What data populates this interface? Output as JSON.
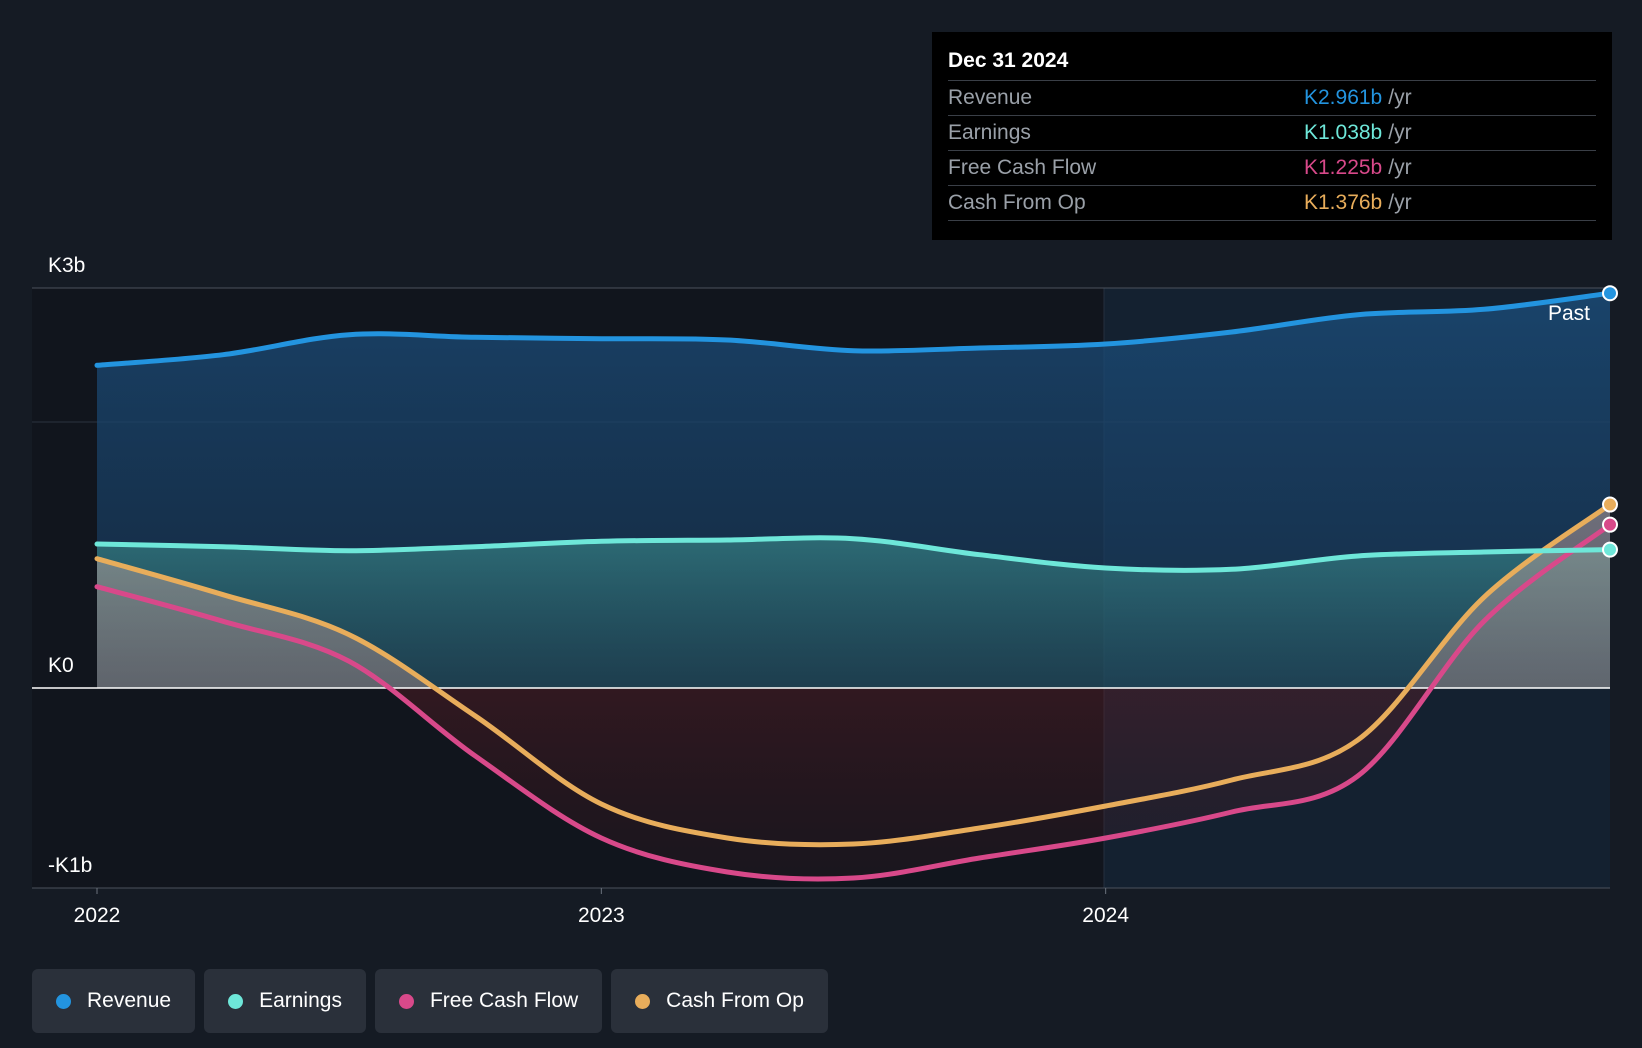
{
  "tooltip": {
    "date": "Dec 31 2024",
    "rows": [
      {
        "label": "Revenue",
        "value": "K2.961b",
        "unit": "/yr",
        "color": "#2394df"
      },
      {
        "label": "Earnings",
        "value": "K1.038b",
        "unit": "/yr",
        "color": "#6ee7d9"
      },
      {
        "label": "Free Cash Flow",
        "value": "K1.225b",
        "unit": "/yr",
        "color": "#d8498a"
      },
      {
        "label": "Cash From Op",
        "value": "K1.376b",
        "unit": "/yr",
        "color": "#e8ad5b"
      }
    ]
  },
  "legend": [
    {
      "label": "Revenue",
      "color": "#2394df"
    },
    {
      "label": "Earnings",
      "color": "#6ee7d9"
    },
    {
      "label": "Free Cash Flow",
      "color": "#d8498a"
    },
    {
      "label": "Cash From Op",
      "color": "#e8ad5b"
    }
  ],
  "chart_data": {
    "type": "area",
    "title": "",
    "xlabel": "",
    "ylabel": "",
    "x_ticks": [
      "2022",
      "2023",
      "2024"
    ],
    "y_tick_labels": [
      "K3b",
      "K0",
      "-K1b"
    ],
    "y_ticks": [
      3,
      0,
      -1
    ],
    "ylim": [
      -1,
      3
    ],
    "xlim": [
      2021.87,
      2025.0
    ],
    "past_label": "Past",
    "x": [
      2022.0,
      2022.25,
      2022.5,
      2022.75,
      2023.0,
      2023.25,
      2023.5,
      2023.75,
      2024.0,
      2024.25,
      2024.5,
      2024.75,
      2025.0
    ],
    "series": [
      {
        "name": "Revenue",
        "color": "#2394df",
        "values": [
          2.42,
          2.5,
          2.65,
          2.63,
          2.62,
          2.61,
          2.53,
          2.55,
          2.58,
          2.67,
          2.8,
          2.84,
          2.961
        ]
      },
      {
        "name": "Earnings",
        "color": "#6ee7d9",
        "values": [
          1.08,
          1.06,
          1.03,
          1.06,
          1.1,
          1.11,
          1.12,
          1.0,
          0.9,
          0.89,
          0.99,
          1.02,
          1.038
        ]
      },
      {
        "name": "Free Cash Flow",
        "color": "#d8498a",
        "values": [
          0.76,
          0.5,
          0.2,
          -0.34,
          -0.75,
          -0.92,
          -0.95,
          -0.85,
          -0.75,
          -0.62,
          -0.44,
          0.5,
          1.225
        ]
      },
      {
        "name": "Cash From Op",
        "color": "#e8ad5b",
        "values": [
          0.97,
          0.7,
          0.4,
          -0.14,
          -0.58,
          -0.75,
          -0.78,
          -0.7,
          -0.59,
          -0.46,
          -0.26,
          0.68,
          1.376
        ]
      }
    ]
  }
}
